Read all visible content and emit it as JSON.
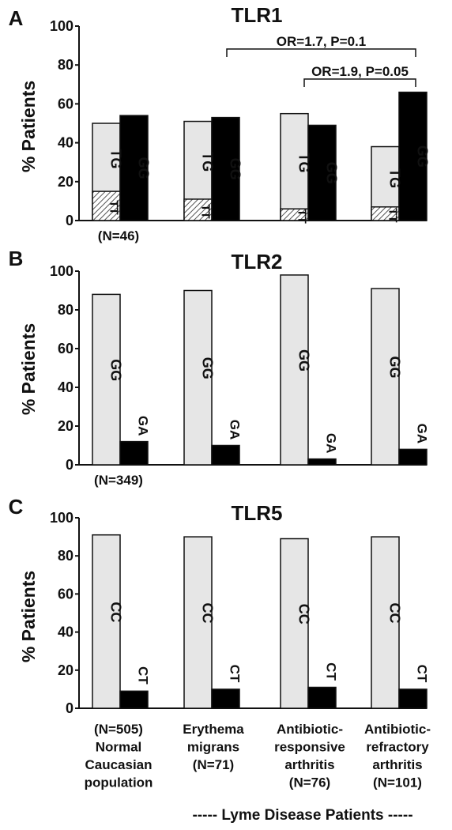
{
  "chart_data": [
    {
      "type": "bar",
      "panel_letter": "A",
      "title": "TLR1",
      "ylabel": "% Patients",
      "ylim": [
        0,
        100
      ],
      "yticks": [
        "0",
        "20",
        "40",
        "60",
        "80",
        "100"
      ],
      "n_label": "(N=46)",
      "categories": [
        "Normal Caucasian population",
        "Erythema migrans",
        "Antibiotic-responsive arthritis",
        "Antibiotic-refractory arthritis"
      ],
      "series": [
        {
          "name": "TG",
          "values": [
            50,
            51,
            55,
            38
          ],
          "color": "#e6e6e6"
        },
        {
          "name": "TT",
          "values": [
            15,
            11,
            6,
            7
          ],
          "hatched": true
        },
        {
          "name": "GG",
          "values": [
            54,
            53,
            49,
            66
          ],
          "color": "#000000"
        }
      ],
      "annotations": [
        "OR=1.7, P=0.1",
        "OR=1.9, P=0.05"
      ]
    },
    {
      "type": "bar",
      "panel_letter": "B",
      "title": "TLR2",
      "ylabel": "% Patients",
      "ylim": [
        0,
        100
      ],
      "yticks": [
        "0",
        "20",
        "40",
        "60",
        "80",
        "100"
      ],
      "n_label": "(N=349)",
      "categories": [
        "Normal Caucasian population",
        "Erythema migrans",
        "Antibiotic-responsive arthritis",
        "Antibiotic-refractory arthritis"
      ],
      "series": [
        {
          "name": "GG",
          "values": [
            88,
            90,
            98,
            91
          ],
          "color": "#e6e6e6"
        },
        {
          "name": "GA",
          "values": [
            12,
            10,
            3,
            8
          ],
          "color": "#000000"
        }
      ]
    },
    {
      "type": "bar",
      "panel_letter": "C",
      "title": "TLR5",
      "ylabel": "% Patients",
      "ylim": [
        0,
        100
      ],
      "yticks": [
        "0",
        "20",
        "40",
        "60",
        "80",
        "100"
      ],
      "categories": [
        "Normal Caucasian population",
        "Erythema migrans",
        "Antibiotic-responsive arthritis",
        "Antibiotic-refractory arthritis"
      ],
      "series": [
        {
          "name": "CC",
          "values": [
            91,
            90,
            89,
            90
          ],
          "color": "#e6e6e6"
        },
        {
          "name": "CT",
          "values": [
            9,
            10,
            11,
            10
          ],
          "color": "#000000"
        }
      ]
    }
  ],
  "group_labels": [
    [
      "(N=505)",
      "Normal",
      "Caucasian",
      "population"
    ],
    [
      "Erythema",
      "migrans",
      "(N=71)"
    ],
    [
      "Antibiotic-",
      "responsive",
      "arthritis",
      "(N=76)"
    ],
    [
      "Antibiotic-",
      "refractory",
      "arthritis",
      "(N=101)"
    ]
  ],
  "footer": "----- Lyme Disease Patients -----"
}
